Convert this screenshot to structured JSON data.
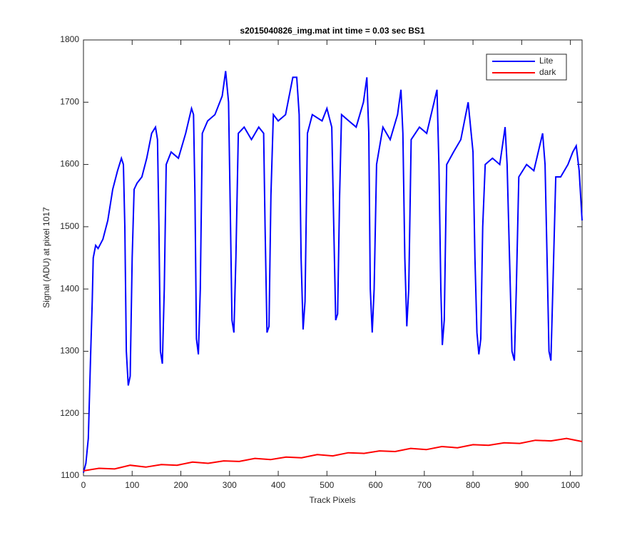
{
  "chart_data": {
    "type": "line",
    "title": "s2015040826_img.mat int time = 0.03 sec   BS1",
    "x_label": "Track Pixels",
    "y_label": "Signal (ADU) at pixel 1017",
    "xlim": [
      0,
      1024
    ],
    "ylim": [
      1100,
      1800
    ],
    "xticks": [
      0,
      100,
      200,
      300,
      400,
      500,
      600,
      700,
      800,
      900,
      1000
    ],
    "yticks": [
      1100,
      1200,
      1300,
      1400,
      1500,
      1600,
      1700,
      1800
    ],
    "legend": "northeast",
    "series": [
      {
        "name": "Lite",
        "color": "#0000ff",
        "x": [
          0,
          5,
          10,
          15,
          18,
          20,
          25,
          30,
          40,
          50,
          60,
          70,
          78,
          82,
          85,
          88,
          92,
          96,
          100,
          104,
          110,
          120,
          130,
          140,
          148,
          152,
          155,
          158,
          162,
          166,
          170,
          180,
          195,
          210,
          222,
          226,
          229,
          232,
          236,
          240,
          244,
          255,
          270,
          285,
          292,
          298,
          302,
          305,
          309,
          313,
          318,
          330,
          345,
          360,
          370,
          373,
          377,
          381,
          385,
          390,
          400,
          415,
          430,
          438,
          443,
          447,
          451,
          455,
          460,
          470,
          490,
          500,
          510,
          514,
          518,
          522,
          526,
          530,
          545,
          560,
          575,
          582,
          586,
          589,
          593,
          597,
          602,
          615,
          630,
          645,
          652,
          656,
          660,
          664,
          668,
          673,
          690,
          705,
          720,
          726,
          730,
          734,
          737,
          741,
          746,
          760,
          775,
          790,
          800,
          804,
          808,
          812,
          816,
          820,
          825,
          840,
          855,
          866,
          870,
          875,
          880,
          885,
          889,
          894,
          910,
          925,
          943,
          948,
          952,
          956,
          960,
          964,
          970,
          980,
          995,
          1005,
          1012,
          1018,
          1024
        ],
        "values": [
          1105,
          1120,
          1160,
          1300,
          1380,
          1450,
          1470,
          1465,
          1480,
          1510,
          1560,
          1590,
          1610,
          1600,
          1500,
          1300,
          1245,
          1260,
          1450,
          1560,
          1570,
          1580,
          1610,
          1650,
          1660,
          1640,
          1500,
          1300,
          1280,
          1400,
          1600,
          1620,
          1610,
          1650,
          1690,
          1680,
          1550,
          1320,
          1295,
          1400,
          1650,
          1670,
          1680,
          1710,
          1750,
          1700,
          1500,
          1350,
          1330,
          1450,
          1650,
          1660,
          1640,
          1660,
          1650,
          1500,
          1330,
          1340,
          1550,
          1680,
          1670,
          1680,
          1740,
          1740,
          1680,
          1450,
          1335,
          1380,
          1650,
          1680,
          1670,
          1690,
          1660,
          1500,
          1350,
          1360,
          1550,
          1680,
          1670,
          1660,
          1700,
          1740,
          1650,
          1400,
          1330,
          1400,
          1600,
          1660,
          1640,
          1680,
          1720,
          1650,
          1450,
          1340,
          1400,
          1640,
          1660,
          1650,
          1700,
          1720,
          1600,
          1400,
          1310,
          1350,
          1600,
          1620,
          1640,
          1700,
          1620,
          1450,
          1330,
          1295,
          1320,
          1500,
          1600,
          1610,
          1600,
          1660,
          1600,
          1450,
          1300,
          1285,
          1400,
          1580,
          1600,
          1590,
          1650,
          1600,
          1450,
          1300,
          1285,
          1400,
          1580,
          1580,
          1600,
          1620,
          1630,
          1590,
          1510
        ]
      },
      {
        "name": "dark",
        "color": "#ff0000",
        "x": [
          0,
          32,
          64,
          96,
          128,
          160,
          192,
          224,
          256,
          288,
          320,
          352,
          384,
          416,
          448,
          480,
          512,
          544,
          576,
          608,
          640,
          672,
          704,
          736,
          768,
          800,
          832,
          864,
          896,
          928,
          960,
          992,
          1024
        ],
        "values": [
          1108,
          1112,
          1111,
          1117,
          1114,
          1118,
          1117,
          1122,
          1120,
          1124,
          1123,
          1128,
          1126,
          1130,
          1129,
          1134,
          1132,
          1137,
          1136,
          1140,
          1139,
          1144,
          1142,
          1147,
          1145,
          1150,
          1149,
          1153,
          1152,
          1157,
          1156,
          1160,
          1155
        ]
      }
    ]
  }
}
